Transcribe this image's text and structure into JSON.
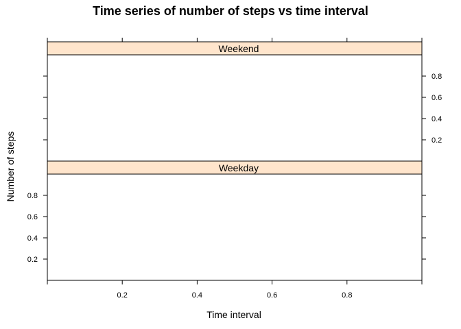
{
  "chart_data": {
    "type": "line",
    "title": "Time series of number of steps vs time interval",
    "xlabel": "Time interval",
    "ylabel": "Number of steps",
    "xlim": [
      0,
      1
    ],
    "ylim": [
      0,
      1
    ],
    "x_ticks": [
      0.2,
      0.4,
      0.6,
      0.8
    ],
    "y_ticks": [
      0.2,
      0.4,
      0.6,
      0.8
    ],
    "panels": [
      {
        "name": "Weekend",
        "x": [],
        "y": []
      },
      {
        "name": "Weekday",
        "x": [],
        "y": []
      }
    ],
    "strip_color": "#FFE5CC",
    "grid": false
  }
}
